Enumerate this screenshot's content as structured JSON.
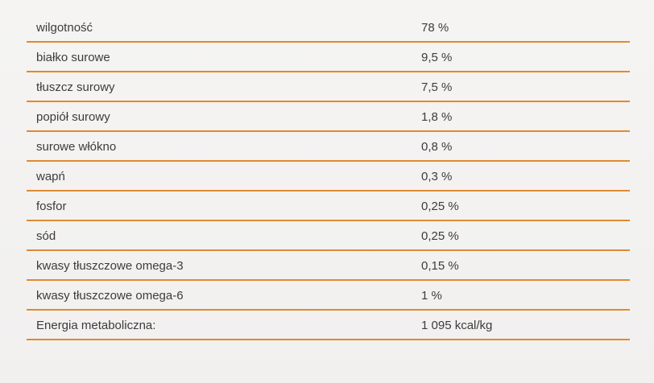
{
  "table": {
    "name": "analytical-composition",
    "language": "pl",
    "rows": [
      {
        "label": "wilgotność",
        "value": "78 %"
      },
      {
        "label": "białko surowe",
        "value": "9,5 %"
      },
      {
        "label": "tłuszcz surowy",
        "value": "7,5 %"
      },
      {
        "label": "popiół surowy",
        "value": "1,8 %"
      },
      {
        "label": "surowe włókno",
        "value": "0,8 %"
      },
      {
        "label": "wapń",
        "value": "0,3 %"
      },
      {
        "label": "fosfor",
        "value": "0,25 %"
      },
      {
        "label": "sód",
        "value": "0,25 %"
      },
      {
        "label": "kwasy tłuszczowe omega-3",
        "value": "0,15 %"
      },
      {
        "label": "kwasy tłuszczowe omega-6",
        "value": "1 %"
      },
      {
        "label": "Energia metaboliczna:",
        "value": "1 095 kcal/kg"
      }
    ]
  },
  "colors": {
    "accent": "#dd8a35",
    "underglow": "#fcf3e2",
    "text": "#3c3c3c",
    "background_top": "#f5f4f3",
    "background_bottom": "#f1f0ef"
  }
}
